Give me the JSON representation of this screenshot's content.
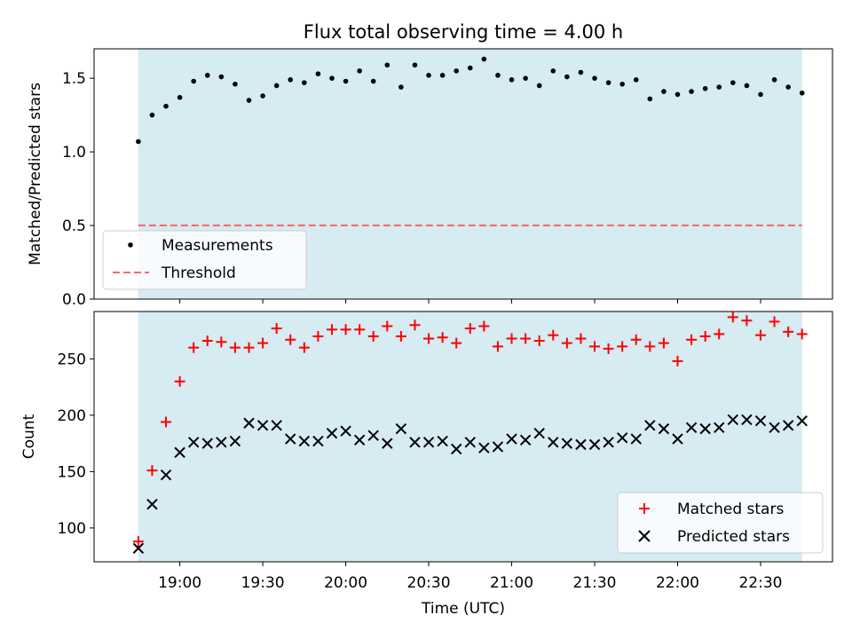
{
  "chart_data": [
    {
      "type": "scatter",
      "title": "Flux total observing time = 4.00 h",
      "xlabel": "",
      "ylabel": "Matched/Predicted stars",
      "xlim": [
        "18:29",
        "22:56"
      ],
      "ylim": [
        0,
        1.7
      ],
      "yticks": [
        0.0,
        0.5,
        1.0,
        1.5
      ],
      "ytick_labels": [
        "0.0",
        "0.5",
        "1.0",
        "1.5"
      ],
      "shaded_span": {
        "from": "18:45",
        "to": "22:45",
        "color": "#add8e6"
      },
      "legend": {
        "placement": "lower-left",
        "entries": [
          "Measurements",
          "Threshold"
        ]
      },
      "colors": {
        "measurements": "#000000",
        "threshold": "#ff6666"
      },
      "threshold": 0.5,
      "series": [
        {
          "name": "Measurements",
          "x": [
            "18:45",
            "18:50",
            "18:55",
            "19:00",
            "19:05",
            "19:10",
            "19:15",
            "19:20",
            "19:25",
            "19:30",
            "19:35",
            "19:40",
            "19:45",
            "19:50",
            "19:55",
            "20:00",
            "20:05",
            "20:10",
            "20:15",
            "20:20",
            "20:25",
            "20:30",
            "20:35",
            "20:40",
            "20:45",
            "20:50",
            "20:55",
            "21:00",
            "21:05",
            "21:10",
            "21:15",
            "21:20",
            "21:25",
            "21:30",
            "21:35",
            "21:40",
            "21:45",
            "21:50",
            "21:55",
            "22:00",
            "22:05",
            "22:10",
            "22:15",
            "22:20",
            "22:25",
            "22:30",
            "22:35",
            "22:40",
            "22:45"
          ],
          "y": [
            1.07,
            1.25,
            1.31,
            1.37,
            1.48,
            1.52,
            1.51,
            1.46,
            1.35,
            1.38,
            1.45,
            1.49,
            1.47,
            1.53,
            1.5,
            1.48,
            1.55,
            1.48,
            1.59,
            1.44,
            1.59,
            1.52,
            1.52,
            1.55,
            1.57,
            1.63,
            1.52,
            1.49,
            1.5,
            1.45,
            1.55,
            1.51,
            1.54,
            1.5,
            1.47,
            1.46,
            1.49,
            1.36,
            1.41,
            1.39,
            1.41,
            1.43,
            1.44,
            1.47,
            1.45,
            1.39,
            1.49,
            1.44,
            1.4
          ]
        }
      ]
    },
    {
      "type": "scatter",
      "title": "",
      "xlabel": "Time (UTC)",
      "ylabel": "Count",
      "xlim": [
        "18:29",
        "22:56"
      ],
      "ylim": [
        70,
        292
      ],
      "yticks": [
        100,
        150,
        200,
        250
      ],
      "ytick_labels": [
        "100",
        "150",
        "200",
        "250"
      ],
      "xticks": [
        "19:00",
        "19:30",
        "20:00",
        "20:30",
        "21:00",
        "21:30",
        "22:00",
        "22:30"
      ],
      "xtick_labels": [
        "19:00",
        "19:30",
        "20:00",
        "20:30",
        "21:00",
        "21:30",
        "22:00",
        "22:30"
      ],
      "shaded_span": {
        "from": "18:45",
        "to": "22:45",
        "color": "#add8e6"
      },
      "legend": {
        "placement": "lower-right",
        "entries": [
          "Matched stars",
          "Predicted stars"
        ]
      },
      "colors": {
        "matched": "#ff0000",
        "predicted": "#000000"
      },
      "series": [
        {
          "name": "Matched stars",
          "marker": "plus",
          "x": [
            "18:45",
            "18:50",
            "18:55",
            "19:00",
            "19:05",
            "19:10",
            "19:15",
            "19:20",
            "19:25",
            "19:30",
            "19:35",
            "19:40",
            "19:45",
            "19:50",
            "19:55",
            "20:00",
            "20:05",
            "20:10",
            "20:15",
            "20:20",
            "20:25",
            "20:30",
            "20:35",
            "20:40",
            "20:45",
            "20:50",
            "20:55",
            "21:00",
            "21:05",
            "21:10",
            "21:15",
            "21:20",
            "21:25",
            "21:30",
            "21:35",
            "21:40",
            "21:45",
            "21:50",
            "21:55",
            "22:00",
            "22:05",
            "22:10",
            "22:15",
            "22:20",
            "22:25",
            "22:30",
            "22:35",
            "22:40",
            "22:45"
          ],
          "y": [
            88,
            151,
            194,
            230,
            260,
            266,
            265,
            260,
            260,
            264,
            277,
            267,
            260,
            270,
            276,
            276,
            276,
            270,
            279,
            270,
            280,
            268,
            269,
            264,
            277,
            279,
            261,
            268,
            268,
            266,
            271,
            264,
            268,
            261,
            259,
            261,
            267,
            261,
            264,
            248,
            267,
            270,
            272,
            287,
            284,
            271,
            283,
            274,
            272
          ]
        },
        {
          "name": "Predicted stars",
          "marker": "x",
          "x": [
            "18:45",
            "18:50",
            "18:55",
            "19:00",
            "19:05",
            "19:10",
            "19:15",
            "19:20",
            "19:25",
            "19:30",
            "19:35",
            "19:40",
            "19:45",
            "19:50",
            "19:55",
            "20:00",
            "20:05",
            "20:10",
            "20:15",
            "20:20",
            "20:25",
            "20:30",
            "20:35",
            "20:40",
            "20:45",
            "20:50",
            "20:55",
            "21:00",
            "21:05",
            "21:10",
            "21:15",
            "21:20",
            "21:25",
            "21:30",
            "21:35",
            "21:40",
            "21:45",
            "21:50",
            "21:55",
            "22:00",
            "22:05",
            "22:10",
            "22:15",
            "22:20",
            "22:25",
            "22:30",
            "22:35",
            "22:40",
            "22:45"
          ],
          "y": [
            82,
            121,
            147,
            167,
            176,
            175,
            176,
            177,
            193,
            191,
            191,
            179,
            177,
            177,
            184,
            186,
            178,
            182,
            175,
            188,
            176,
            176,
            177,
            170,
            176,
            171,
            172,
            179,
            178,
            184,
            176,
            175,
            174,
            174,
            176,
            180,
            179,
            191,
            188,
            179,
            189,
            188,
            189,
            196,
            196,
            195,
            189,
            191,
            195
          ]
        }
      ]
    }
  ]
}
